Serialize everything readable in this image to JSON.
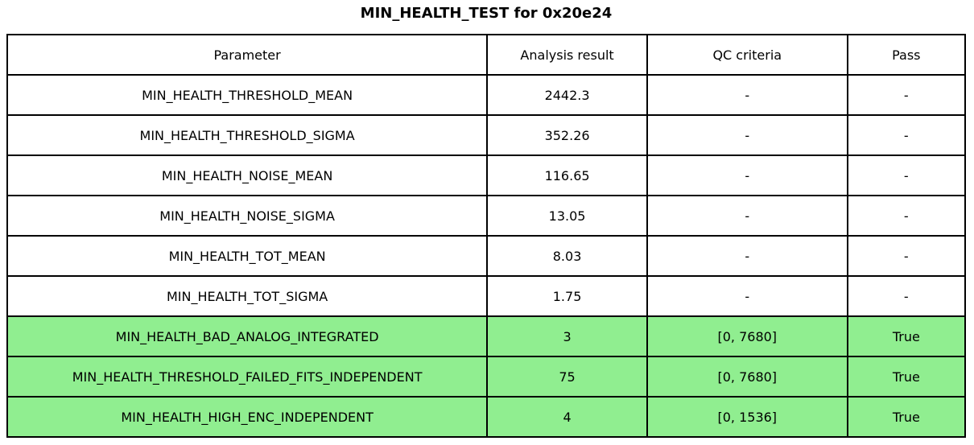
{
  "title": "MIN_HEALTH_TEST for 0x20e24",
  "table": {
    "columns": {
      "parameter": "Parameter",
      "result": "Analysis result",
      "qc": "QC criteria",
      "pass": "Pass"
    },
    "rows": [
      {
        "parameter": "MIN_HEALTH_THRESHOLD_MEAN",
        "result": "2442.3",
        "qc": "-",
        "pass": "-",
        "highlight": false
      },
      {
        "parameter": "MIN_HEALTH_THRESHOLD_SIGMA",
        "result": "352.26",
        "qc": "-",
        "pass": "-",
        "highlight": false
      },
      {
        "parameter": "MIN_HEALTH_NOISE_MEAN",
        "result": "116.65",
        "qc": "-",
        "pass": "-",
        "highlight": false
      },
      {
        "parameter": "MIN_HEALTH_NOISE_SIGMA",
        "result": "13.05",
        "qc": "-",
        "pass": "-",
        "highlight": false
      },
      {
        "parameter": "MIN_HEALTH_TOT_MEAN",
        "result": "8.03",
        "qc": "-",
        "pass": "-",
        "highlight": false
      },
      {
        "parameter": "MIN_HEALTH_TOT_SIGMA",
        "result": "1.75",
        "qc": "-",
        "pass": "-",
        "highlight": false
      },
      {
        "parameter": "MIN_HEALTH_BAD_ANALOG_INTEGRATED",
        "result": "3",
        "qc": "[0, 7680]",
        "pass": "True",
        "highlight": true
      },
      {
        "parameter": "MIN_HEALTH_THRESHOLD_FAILED_FITS_INDEPENDENT",
        "result": "75",
        "qc": "[0, 7680]",
        "pass": "True",
        "highlight": true
      },
      {
        "parameter": "MIN_HEALTH_HIGH_ENC_INDEPENDENT",
        "result": "4",
        "qc": "[0, 1536]",
        "pass": "True",
        "highlight": true
      }
    ]
  },
  "colors": {
    "highlight": "#90EE90",
    "border": "#000000",
    "background": "#ffffff",
    "text": "#000000"
  }
}
